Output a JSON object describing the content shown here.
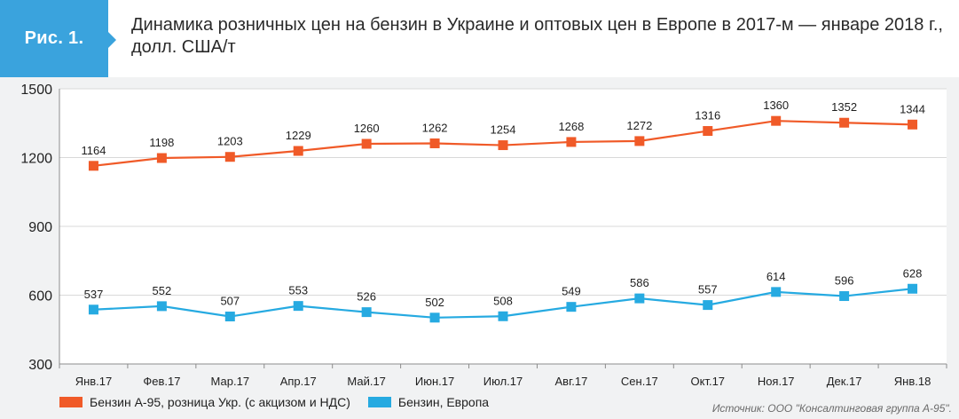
{
  "header": {
    "badge": "Рис. 1.",
    "title": "Динамика розничных цен на бензин в Украине и оптовых цен в Европе в 2017-м — январе 2018 г., долл. США/т"
  },
  "chart_data": {
    "type": "line",
    "categories": [
      "Янв.17",
      "Фев.17",
      "Мар.17",
      "Апр.17",
      "Май.17",
      "Июн.17",
      "Июл.17",
      "Авг.17",
      "Сен.17",
      "Окт.17",
      "Ноя.17",
      "Дек.17",
      "Янв.18"
    ],
    "series": [
      {
        "name": "Бензин А-95, розница Укр. (с акцизом и НДС)",
        "color": "#f05a28",
        "values": [
          1164,
          1198,
          1203,
          1229,
          1260,
          1262,
          1254,
          1268,
          1272,
          1316,
          1360,
          1352,
          1344
        ]
      },
      {
        "name": "Бензин, Европа",
        "color": "#26aae1",
        "values": [
          537,
          552,
          507,
          553,
          526,
          502,
          508,
          549,
          586,
          557,
          614,
          596,
          628
        ]
      }
    ],
    "ylim": [
      300,
      1500
    ],
    "yticks": [
      300,
      600,
      900,
      1200,
      1500
    ],
    "grid": "horizontal",
    "legend_position": "bottom-left"
  },
  "source": "Источник: ООО \"Консалтинговая группа А-95\"."
}
